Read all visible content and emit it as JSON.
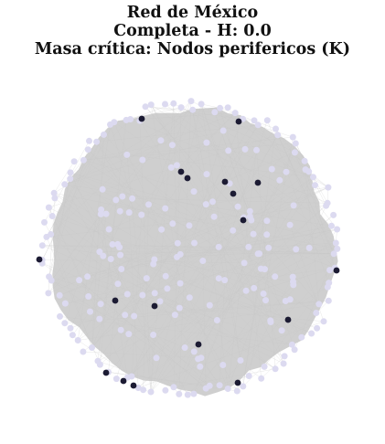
{
  "title": {
    "line1": "Red de México",
    "line2": "Completa - H: 0.0",
    "line3": "Masa crítica: Nodos perifericos (K)"
  },
  "colors": {
    "background": "#ffffff",
    "edge_mass": "#cfcfcf",
    "edge_line": "#c8c8c8",
    "node_regular": "#dcdaf0",
    "node_critical": "#1c1b33"
  },
  "icons": []
}
